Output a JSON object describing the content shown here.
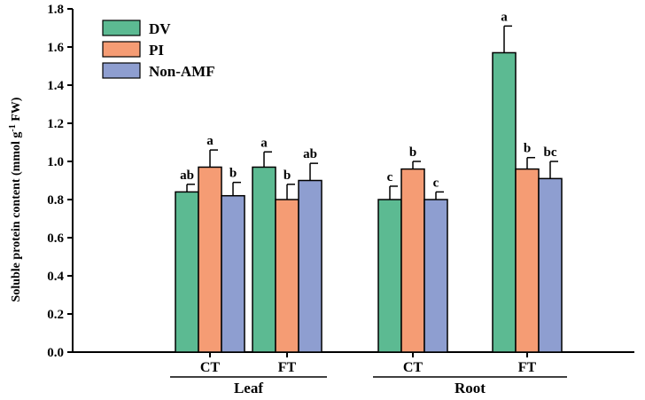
{
  "chart_data": {
    "type": "bar",
    "ylabel_main": "Soluble protein content  (mmol g",
    "ylabel_sup": "-1",
    "ylabel_end": " FW)",
    "ylim": [
      0,
      1.8
    ],
    "yticks": [
      "0.0",
      "0.2",
      "0.4",
      "0.6",
      "0.8",
      "1.0",
      "1.2",
      "1.4",
      "1.6",
      "1.8"
    ],
    "categories": [
      "CT",
      "FT",
      "CT",
      "FT"
    ],
    "groups": [
      {
        "label": "Leaf",
        "categories": [
          0,
          1
        ]
      },
      {
        "label": "Root",
        "categories": [
          2,
          3
        ]
      }
    ],
    "series": [
      {
        "name": "DV",
        "color": "#5cba92",
        "values": [
          0.84,
          0.97,
          0.8,
          1.57
        ],
        "errors": [
          0.04,
          0.08,
          0.07,
          0.14
        ],
        "letters": [
          "ab",
          "a",
          "c",
          "a"
        ]
      },
      {
        "name": "PI",
        "color": "#f59c74",
        "values": [
          0.97,
          0.8,
          0.96,
          0.96
        ],
        "errors": [
          0.09,
          0.08,
          0.04,
          0.06
        ],
        "letters": [
          "a",
          "b",
          "b",
          "b"
        ]
      },
      {
        "name": "Non-AMF",
        "color": "#8e9ed0",
        "values": [
          0.82,
          0.9,
          0.8,
          0.91
        ],
        "errors": [
          0.07,
          0.09,
          0.04,
          0.09
        ],
        "letters": [
          "b",
          "ab",
          "c",
          "bc"
        ]
      }
    ],
    "legend_position": "top-left",
    "grid": false
  }
}
